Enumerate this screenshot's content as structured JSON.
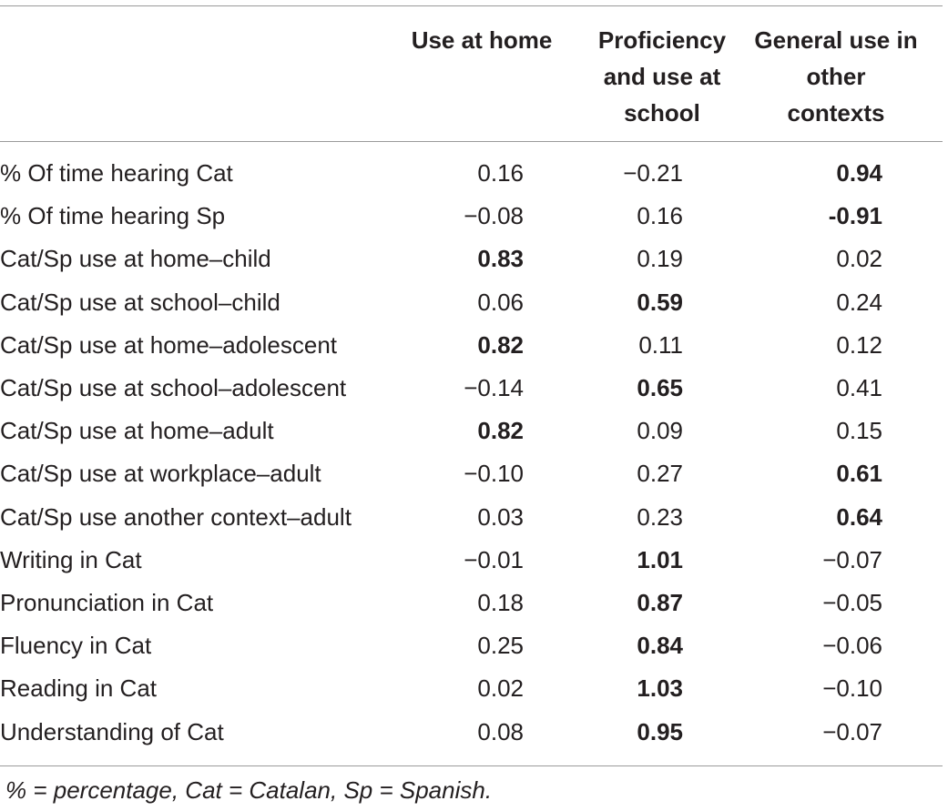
{
  "columns": [
    {
      "lines": [
        "Use at home"
      ]
    },
    {
      "lines": [
        "Proficiency",
        "and use at",
        "school"
      ]
    },
    {
      "lines": [
        "General use in",
        "other",
        "contexts"
      ]
    }
  ],
  "rows": [
    {
      "label": "% Of time hearing Cat",
      "v": [
        "0.16",
        "−0.21",
        "0.94"
      ],
      "bold": [
        false,
        false,
        true
      ]
    },
    {
      "label": "% Of time hearing Sp",
      "v": [
        "−0.08",
        "0.16",
        "-0.91"
      ],
      "bold": [
        false,
        false,
        true
      ]
    },
    {
      "label": "Cat/Sp use at home–child",
      "v": [
        "0.83",
        "0.19",
        "0.02"
      ],
      "bold": [
        true,
        false,
        false
      ]
    },
    {
      "label": "Cat/Sp use at school–child",
      "v": [
        "0.06",
        "0.59",
        "0.24"
      ],
      "bold": [
        false,
        true,
        false
      ]
    },
    {
      "label": "Cat/Sp use at home–adolescent",
      "v": [
        "0.82",
        "0.11",
        "0.12"
      ],
      "bold": [
        true,
        false,
        false
      ]
    },
    {
      "label": "Cat/Sp use at school–adolescent",
      "v": [
        "−0.14",
        "0.65",
        "0.41"
      ],
      "bold": [
        false,
        true,
        false
      ]
    },
    {
      "label": "Cat/Sp use at home–adult",
      "v": [
        "0.82",
        "0.09",
        "0.15"
      ],
      "bold": [
        true,
        false,
        false
      ]
    },
    {
      "label": "Cat/Sp use at workplace–adult",
      "v": [
        "−0.10",
        "0.27",
        "0.61"
      ],
      "bold": [
        false,
        false,
        true
      ]
    },
    {
      "label": "Cat/Sp use another context–adult",
      "v": [
        "0.03",
        "0.23",
        "0.64"
      ],
      "bold": [
        false,
        false,
        true
      ]
    },
    {
      "label": "Writing in Cat",
      "v": [
        "−0.01",
        "1.01",
        "−0.07"
      ],
      "bold": [
        false,
        true,
        false
      ]
    },
    {
      "label": "Pronunciation in Cat",
      "v": [
        "0.18",
        "0.87",
        "−0.05"
      ],
      "bold": [
        false,
        true,
        false
      ]
    },
    {
      "label": "Fluency in Cat",
      "v": [
        "0.25",
        "0.84",
        "−0.06"
      ],
      "bold": [
        false,
        true,
        false
      ]
    },
    {
      "label": "Reading in Cat",
      "v": [
        "0.02",
        "1.03",
        "−0.10"
      ],
      "bold": [
        false,
        true,
        false
      ]
    },
    {
      "label": "Understanding of Cat",
      "v": [
        "0.08",
        "0.95",
        "−0.07"
      ],
      "bold": [
        false,
        true,
        false
      ]
    }
  ],
  "footnote": "% = percentage, Cat = Catalan, Sp = Spanish."
}
